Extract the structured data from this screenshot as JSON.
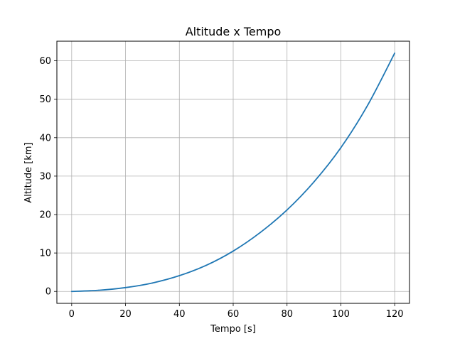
{
  "chart_data": {
    "type": "line",
    "title": "Altitude x Tempo",
    "xlabel": "Tempo [s]",
    "ylabel": "Altitude [km]",
    "xlim": [
      -5.5,
      125.5
    ],
    "ylim": [
      -3.1,
      65.1
    ],
    "xticks": [
      0,
      20,
      40,
      60,
      80,
      100,
      120
    ],
    "yticks": [
      0,
      10,
      20,
      30,
      40,
      50,
      60
    ],
    "grid": true,
    "legend": "none",
    "series": [
      {
        "color": "#1f77b4",
        "x": [
          0,
          10,
          20,
          30,
          40,
          50,
          60,
          70,
          80,
          90,
          100,
          110,
          120
        ],
        "y": [
          0,
          0.3,
          1.0,
          2.2,
          4.1,
          6.8,
          10.5,
          15.3,
          21.2,
          28.5,
          37.4,
          48.5,
          62.0
        ]
      }
    ]
  }
}
